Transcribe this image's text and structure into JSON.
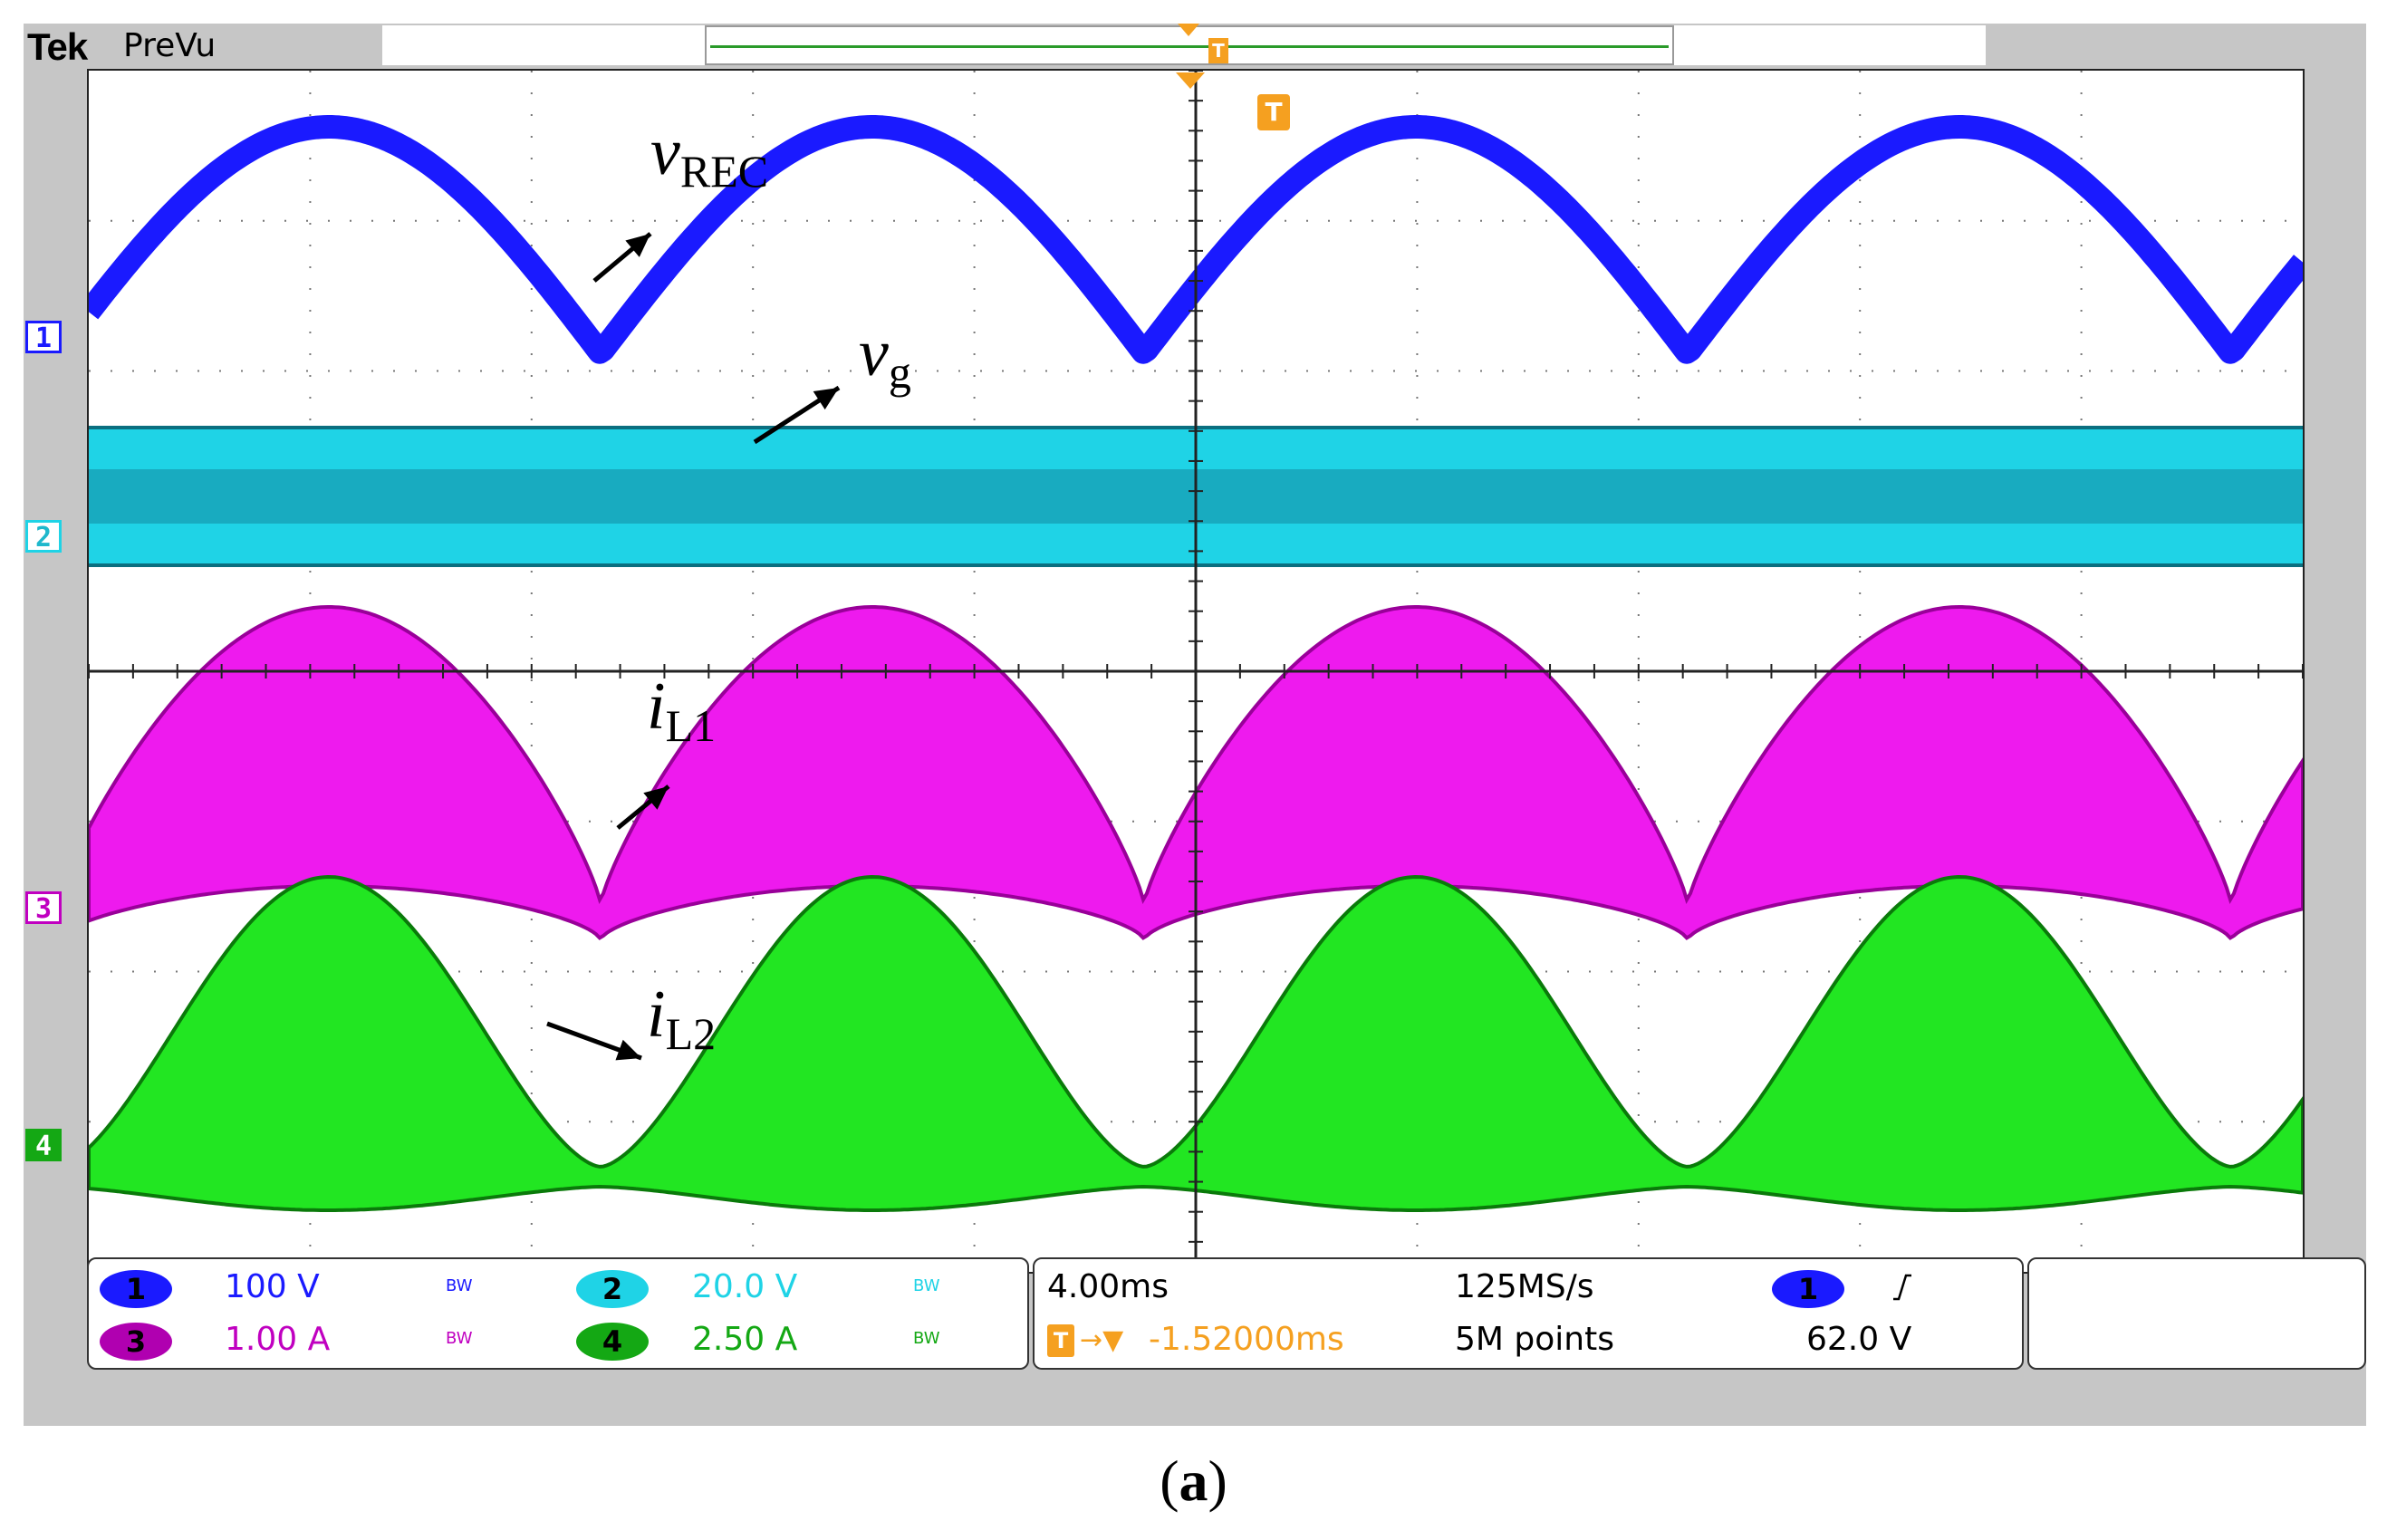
{
  "header": {
    "brand": "Tek",
    "mode": "PreVu"
  },
  "trigger": {
    "marker_label": "T"
  },
  "channels": [
    {
      "id": "1",
      "color": "#1a1aff",
      "scale": "100 V",
      "bw": "BW"
    },
    {
      "id": "2",
      "color": "#1fd3e6",
      "scale": "20.0 V",
      "bw": "BW"
    },
    {
      "id": "3",
      "color": "#c000c0",
      "scale": "1.00 A",
      "bw": "BW"
    },
    {
      "id": "4",
      "color": "#14a814",
      "scale": "2.50 A",
      "bw": "BW"
    }
  ],
  "timebase": {
    "scale": "4.00ms",
    "sample_rate": "125MS/s",
    "delay": "-1.52000ms",
    "record_length": "5M points",
    "trigger_source": "1",
    "trigger_level": "62.0 V"
  },
  "annotations": {
    "v_rec": {
      "main": "v",
      "sub": "REC"
    },
    "v_g": {
      "main": "v",
      "sub": "g"
    },
    "i_l1": {
      "main": "i",
      "sub": "L1"
    },
    "i_l2": {
      "main": "i",
      "sub": "L2"
    }
  },
  "caption": {
    "open": "(",
    "letter": "a",
    "close": ")"
  }
}
